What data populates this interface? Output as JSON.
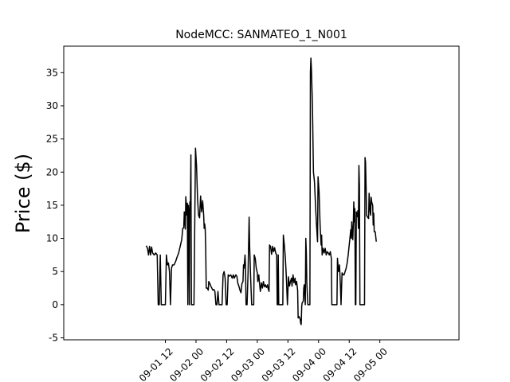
{
  "chart_data": {
    "type": "line",
    "title": "NodeMCC: SANMATEO_1_N001",
    "xlabel": "",
    "ylabel": "Price ($)",
    "ylim": [
      -5.3,
      39
    ],
    "xlim_hours": [
      -27.8,
      127
    ],
    "grid": false,
    "legend": "none",
    "line_color": "#000000",
    "y_ticks": [
      -5,
      0,
      5,
      10,
      15,
      20,
      25,
      30,
      35
    ],
    "x_ticks": [
      {
        "hour": 12,
        "label": "09-01 12"
      },
      {
        "hour": 24,
        "label": "09-02 00"
      },
      {
        "hour": 36,
        "label": "09-02 12"
      },
      {
        "hour": 48,
        "label": "09-03 00"
      },
      {
        "hour": 60,
        "label": "09-03 12"
      },
      {
        "hour": 72,
        "label": "09-04 00"
      },
      {
        "hour": 84,
        "label": "09-04 12"
      },
      {
        "hour": 96,
        "label": "09-05 00"
      }
    ],
    "series": [
      {
        "points": [
          [
            4.5,
            8.9
          ],
          [
            5.0,
            8.5
          ],
          [
            5.4,
            7.5
          ],
          [
            5.8,
            8.8
          ],
          [
            6.2,
            7.5
          ],
          [
            6.6,
            8.7
          ],
          [
            7.0,
            7.8
          ],
          [
            7.6,
            7.5
          ],
          [
            8.2,
            7.8
          ],
          [
            8.8,
            7.5
          ],
          [
            9.2,
            0
          ],
          [
            9.6,
            0
          ],
          [
            10.0,
            7.5
          ],
          [
            10.4,
            0
          ],
          [
            10.8,
            0
          ],
          [
            11.2,
            0
          ],
          [
            11.6,
            0
          ],
          [
            12.0,
            0
          ],
          [
            12.4,
            7.5
          ],
          [
            12.8,
            6.0
          ],
          [
            13.2,
            6.3
          ],
          [
            13.6,
            5.0
          ],
          [
            14.0,
            0
          ],
          [
            14.4,
            5.5
          ],
          [
            14.8,
            6.0
          ],
          [
            15.4,
            6.0
          ],
          [
            16.0,
            6.5
          ],
          [
            16.6,
            7.2
          ],
          [
            17.2,
            7.8
          ],
          [
            17.8,
            8.8
          ],
          [
            18.4,
            9.8
          ],
          [
            18.8,
            11.5
          ],
          [
            19.2,
            11.6
          ],
          [
            19.4,
            14.0
          ],
          [
            19.6,
            13.0
          ],
          [
            19.8,
            11.4
          ],
          [
            20.0,
            16.3
          ],
          [
            20.2,
            15.0
          ],
          [
            20.4,
            13.5
          ],
          [
            20.6,
            15.3
          ],
          [
            20.8,
            0
          ],
          [
            21.0,
            15.0
          ],
          [
            21.2,
            14.0
          ],
          [
            21.4,
            0
          ],
          [
            21.6,
            15.5
          ],
          [
            21.8,
            15.0
          ],
          [
            22.0,
            22.6
          ],
          [
            22.2,
            0
          ],
          [
            22.4,
            0
          ],
          [
            22.6,
            0
          ],
          [
            22.8,
            0
          ],
          [
            23.2,
            0
          ],
          [
            23.8,
            23.6
          ],
          [
            24.2,
            21.0
          ],
          [
            24.6,
            16.0
          ],
          [
            25.0,
            13.5
          ],
          [
            25.4,
            13.1
          ],
          [
            25.8,
            16.4
          ],
          [
            26.2,
            14.0
          ],
          [
            26.6,
            15.7
          ],
          [
            27.0,
            13.5
          ],
          [
            27.2,
            11.5
          ],
          [
            27.4,
            12.2
          ],
          [
            27.6,
            11.5
          ],
          [
            27.8,
            8.5
          ],
          [
            28.0,
            2.5
          ],
          [
            28.4,
            2.5
          ],
          [
            28.8,
            2.2
          ],
          [
            29.0,
            3.5
          ],
          [
            29.4,
            3.2
          ],
          [
            29.8,
            2.8
          ],
          [
            30.2,
            2.5
          ],
          [
            30.6,
            2.2
          ],
          [
            31.0,
            2.3
          ],
          [
            31.4,
            2.0
          ],
          [
            31.8,
            0
          ],
          [
            32.2,
            0
          ],
          [
            32.6,
            2.0
          ],
          [
            33.0,
            0
          ],
          [
            33.4,
            0
          ],
          [
            33.8,
            0
          ],
          [
            34.2,
            0
          ],
          [
            34.6,
            4.5
          ],
          [
            35.0,
            5.0
          ],
          [
            35.4,
            4.0
          ],
          [
            35.8,
            0
          ],
          [
            36.2,
            0
          ],
          [
            36.6,
            4.5
          ],
          [
            37.0,
            4.3
          ],
          [
            37.6,
            4.5
          ],
          [
            38.2,
            4.0
          ],
          [
            38.6,
            4.5
          ],
          [
            39.0,
            4.0
          ],
          [
            39.6,
            4.5
          ],
          [
            40.0,
            4.3
          ],
          [
            40.4,
            3.2
          ],
          [
            40.8,
            2.8
          ],
          [
            41.2,
            2.2
          ],
          [
            41.6,
            1.8
          ],
          [
            42.0,
            3.2
          ],
          [
            42.4,
            3.5
          ],
          [
            42.6,
            6.0
          ],
          [
            42.8,
            5.5
          ],
          [
            43.2,
            7.5
          ],
          [
            43.4,
            5.7
          ],
          [
            43.6,
            0
          ],
          [
            44.0,
            0
          ],
          [
            44.4,
            5.0
          ],
          [
            44.8,
            13.2
          ],
          [
            45.0,
            9.0
          ],
          [
            45.4,
            4.0
          ],
          [
            45.8,
            0
          ],
          [
            46.2,
            0
          ],
          [
            46.6,
            0
          ],
          [
            46.8,
            7.5
          ],
          [
            47.2,
            7.0
          ],
          [
            47.6,
            5.5
          ],
          [
            48.0,
            4.8
          ],
          [
            48.2,
            3.5
          ],
          [
            48.6,
            4.5
          ],
          [
            48.8,
            3.5
          ],
          [
            49.2,
            2.0
          ],
          [
            49.6,
            3.3
          ],
          [
            50.0,
            2.5
          ],
          [
            50.4,
            3.5
          ],
          [
            50.8,
            2.7
          ],
          [
            51.2,
            3.0
          ],
          [
            51.6,
            2.6
          ],
          [
            52.0,
            3.0
          ],
          [
            52.2,
            2.5
          ],
          [
            52.6,
            2.0
          ],
          [
            52.8,
            9.0
          ],
          [
            53.2,
            8.8
          ],
          [
            53.6,
            7.6
          ],
          [
            54.0,
            8.8
          ],
          [
            54.4,
            8.0
          ],
          [
            54.8,
            8.6
          ],
          [
            55.2,
            7.8
          ],
          [
            55.6,
            7.5
          ],
          [
            55.8,
            0
          ],
          [
            56.0,
            0
          ],
          [
            56.2,
            7.5
          ],
          [
            56.4,
            0
          ],
          [
            56.8,
            0
          ],
          [
            57.2,
            0
          ],
          [
            57.6,
            0
          ],
          [
            58.0,
            0
          ],
          [
            58.2,
            10.5
          ],
          [
            58.6,
            9.0
          ],
          [
            59.0,
            7.0
          ],
          [
            59.4,
            4.0
          ],
          [
            59.8,
            0
          ],
          [
            60.2,
            4.2
          ],
          [
            60.6,
            2.8
          ],
          [
            61.0,
            3.5
          ],
          [
            61.4,
            4.0
          ],
          [
            61.6,
            2.8
          ],
          [
            62.0,
            4.5
          ],
          [
            62.4,
            3.3
          ],
          [
            62.8,
            4.0
          ],
          [
            63.0,
            3.0
          ],
          [
            63.4,
            3.5
          ],
          [
            63.8,
            2.2
          ],
          [
            64.0,
            -2.0
          ],
          [
            64.4,
            -1.8
          ],
          [
            64.8,
            -2.2
          ],
          [
            65.0,
            -2.8
          ],
          [
            65.2,
            -3.0
          ],
          [
            65.4,
            -0.2
          ],
          [
            65.6,
            0.3
          ],
          [
            66.0,
            0.5
          ],
          [
            66.2,
            2.5
          ],
          [
            66.4,
            3.0
          ],
          [
            66.8,
            0
          ],
          [
            67.0,
            10.0
          ],
          [
            67.2,
            8.0
          ],
          [
            67.4,
            3.3
          ],
          [
            67.8,
            0
          ],
          [
            68.2,
            0
          ],
          [
            68.6,
            0
          ],
          [
            68.8,
            35.0
          ],
          [
            69.0,
            37.2
          ],
          [
            69.2,
            35.5
          ],
          [
            69.6,
            30.0
          ],
          [
            70.0,
            20.0
          ],
          [
            70.4,
            18.5
          ],
          [
            70.8,
            15.0
          ],
          [
            71.2,
            12.0
          ],
          [
            71.6,
            9.5
          ],
          [
            71.8,
            19.3
          ],
          [
            72.2,
            17.0
          ],
          [
            72.6,
            12.0
          ],
          [
            73.0,
            9.0
          ],
          [
            73.2,
            10.5
          ],
          [
            73.4,
            7.5
          ],
          [
            73.8,
            8.5
          ],
          [
            74.2,
            7.8
          ],
          [
            74.6,
            8.5
          ],
          [
            75.0,
            7.5
          ],
          [
            75.4,
            8.0
          ],
          [
            75.8,
            7.8
          ],
          [
            76.2,
            7.5
          ],
          [
            76.6,
            8.0
          ],
          [
            77.0,
            7.0
          ],
          [
            77.2,
            0
          ],
          [
            77.6,
            0
          ],
          [
            78.0,
            0
          ],
          [
            78.4,
            0
          ],
          [
            78.8,
            0
          ],
          [
            79.2,
            0
          ],
          [
            79.4,
            7.0
          ],
          [
            79.8,
            5.0
          ],
          [
            80.2,
            6.0
          ],
          [
            80.6,
            2.5
          ],
          [
            80.8,
            0
          ],
          [
            81.2,
            4.8
          ],
          [
            81.6,
            4.5
          ],
          [
            82.0,
            4.5
          ],
          [
            82.4,
            5.0
          ],
          [
            82.8,
            5.5
          ],
          [
            83.2,
            6.3
          ],
          [
            83.6,
            7.5
          ],
          [
            84.0,
            9.0
          ],
          [
            84.4,
            10.5
          ],
          [
            84.6,
            11.3
          ],
          [
            84.8,
            10.0
          ],
          [
            85.0,
            12.5
          ],
          [
            85.2,
            11.0
          ],
          [
            85.4,
            9.8
          ],
          [
            85.6,
            12.0
          ],
          [
            85.8,
            15.5
          ],
          [
            86.0,
            12.5
          ],
          [
            86.2,
            14.5
          ],
          [
            86.4,
            0
          ],
          [
            86.6,
            0
          ],
          [
            86.8,
            14.0
          ],
          [
            87.2,
            13.3
          ],
          [
            87.4,
            14.2
          ],
          [
            87.6,
            11.5
          ],
          [
            87.8,
            21.0
          ],
          [
            88.0,
            18.0
          ],
          [
            88.2,
            0
          ],
          [
            88.6,
            0
          ],
          [
            89.0,
            0
          ],
          [
            89.4,
            0
          ],
          [
            89.8,
            0
          ],
          [
            90.0,
            0
          ],
          [
            90.2,
            22.2
          ],
          [
            90.4,
            21.5
          ],
          [
            90.6,
            18.0
          ],
          [
            90.8,
            13.5
          ],
          [
            91.2,
            13.2
          ],
          [
            91.6,
            13.0
          ],
          [
            91.8,
            16.8
          ],
          [
            92.0,
            15.5
          ],
          [
            92.2,
            14.0
          ],
          [
            92.4,
            13.5
          ],
          [
            92.6,
            16.2
          ],
          [
            92.8,
            15.5
          ],
          [
            93.2,
            15.0
          ],
          [
            93.4,
            12.0
          ],
          [
            93.6,
            13.8
          ],
          [
            93.8,
            11.0
          ],
          [
            94.2,
            11.0
          ],
          [
            94.6,
            9.5
          ]
        ]
      }
    ]
  }
}
